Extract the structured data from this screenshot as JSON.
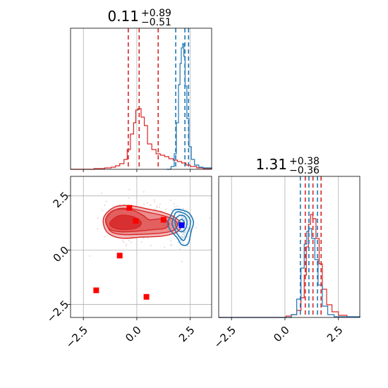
{
  "chart_data": {
    "type": "corner",
    "parameters": 2,
    "grid": true,
    "colors": {
      "red": "#d62728",
      "blue": "#1f77b4",
      "marker_red": "#ff0000",
      "marker_blue": "#0000ff"
    },
    "titles": [
      {
        "median": "0.11",
        "plus": "+0.89",
        "minus": "−0.51"
      },
      {
        "median": "1.31",
        "plus": "+0.38",
        "minus": "−0.36"
      }
    ],
    "x_ticks": [
      {
        "value": -2.5,
        "label": "−2.5"
      },
      {
        "value": 0.0,
        "label": "0.0"
      },
      {
        "value": 2.5,
        "label": "2.5"
      }
    ],
    "y_ticks": [
      {
        "value": 2.5,
        "label": "2.5"
      },
      {
        "value": 0.0,
        "label": "0.0"
      },
      {
        "value": -2.5,
        "label": "−2.5"
      }
    ],
    "xlim": [
      -3.1,
      3.5
    ],
    "ylim": [
      -3.1,
      3.4
    ],
    "hist_param1": {
      "red_quantile_lines": [
        -0.4,
        0.11,
        1.0
      ],
      "blue_quantile_lines": [
        1.82,
        2.25,
        2.42
      ],
      "red_counts": [
        {
          "x": -3.1,
          "y": 0
        },
        {
          "x": -2.5,
          "y": 0
        },
        {
          "x": -2.0,
          "y": 1
        },
        {
          "x": -1.5,
          "y": 2
        },
        {
          "x": -1.2,
          "y": 3
        },
        {
          "x": -1.0,
          "y": 5
        },
        {
          "x": -0.8,
          "y": 8
        },
        {
          "x": -0.6,
          "y": 14
        },
        {
          "x": -0.45,
          "y": 28
        },
        {
          "x": -0.3,
          "y": 50
        },
        {
          "x": -0.15,
          "y": 66
        },
        {
          "x": -0.05,
          "y": 84
        },
        {
          "x": 0.05,
          "y": 86
        },
        {
          "x": 0.2,
          "y": 74
        },
        {
          "x": 0.35,
          "y": 62
        },
        {
          "x": 0.5,
          "y": 36
        },
        {
          "x": 0.7,
          "y": 28
        },
        {
          "x": 0.9,
          "y": 22
        },
        {
          "x": 1.1,
          "y": 20
        },
        {
          "x": 1.3,
          "y": 18
        },
        {
          "x": 1.5,
          "y": 15
        },
        {
          "x": 1.7,
          "y": 13
        },
        {
          "x": 1.9,
          "y": 11
        },
        {
          "x": 2.1,
          "y": 9
        },
        {
          "x": 2.3,
          "y": 6
        },
        {
          "x": 2.5,
          "y": 4
        },
        {
          "x": 2.8,
          "y": 2
        },
        {
          "x": 3.1,
          "y": 1
        },
        {
          "x": 3.5,
          "y": 0
        }
      ],
      "blue_counts": [
        {
          "x": 1.4,
          "y": 0
        },
        {
          "x": 1.6,
          "y": 4
        },
        {
          "x": 1.75,
          "y": 22
        },
        {
          "x": 1.85,
          "y": 66
        },
        {
          "x": 1.95,
          "y": 120
        },
        {
          "x": 2.02,
          "y": 150
        },
        {
          "x": 2.08,
          "y": 172
        },
        {
          "x": 2.14,
          "y": 178
        },
        {
          "x": 2.2,
          "y": 160
        },
        {
          "x": 2.26,
          "y": 118
        },
        {
          "x": 2.34,
          "y": 72
        },
        {
          "x": 2.44,
          "y": 32
        },
        {
          "x": 2.55,
          "y": 14
        },
        {
          "x": 2.7,
          "y": 6
        },
        {
          "x": 2.9,
          "y": 3
        },
        {
          "x": 3.1,
          "y": 2
        },
        {
          "x": 3.5,
          "y": 0
        }
      ],
      "ymax": 200
    },
    "hist_param2": {
      "red_quantile_lines": [
        0.95,
        1.31,
        1.69
      ],
      "blue_quantile_lines": [
        0.72,
        1.12,
        1.52
      ],
      "red_counts": [
        {
          "x": -3.1,
          "y": 0
        },
        {
          "x": -0.2,
          "y": 0
        },
        {
          "x": 0.05,
          "y": 2
        },
        {
          "x": 0.3,
          "y": 4
        },
        {
          "x": 0.55,
          "y": 10
        },
        {
          "x": 0.75,
          "y": 28
        },
        {
          "x": 0.9,
          "y": 60
        },
        {
          "x": 1.0,
          "y": 100
        },
        {
          "x": 1.1,
          "y": 132
        },
        {
          "x": 1.2,
          "y": 146
        },
        {
          "x": 1.3,
          "y": 140
        },
        {
          "x": 1.45,
          "y": 112
        },
        {
          "x": 1.6,
          "y": 76
        },
        {
          "x": 1.75,
          "y": 40
        },
        {
          "x": 1.95,
          "y": 18
        },
        {
          "x": 2.2,
          "y": 8
        },
        {
          "x": 2.5,
          "y": 3
        },
        {
          "x": 2.9,
          "y": 1
        },
        {
          "x": 3.5,
          "y": 0
        }
      ],
      "blue_counts": [
        {
          "x": -3.1,
          "y": 0
        },
        {
          "x": 0.0,
          "y": 0
        },
        {
          "x": 0.3,
          "y": 4
        },
        {
          "x": 0.55,
          "y": 26
        },
        {
          "x": 0.75,
          "y": 70
        },
        {
          "x": 0.9,
          "y": 104
        },
        {
          "x": 1.02,
          "y": 122
        },
        {
          "x": 1.12,
          "y": 126
        },
        {
          "x": 1.25,
          "y": 112
        },
        {
          "x": 1.4,
          "y": 82
        },
        {
          "x": 1.55,
          "y": 46
        },
        {
          "x": 1.75,
          "y": 16
        },
        {
          "x": 2.0,
          "y": 4
        },
        {
          "x": 2.3,
          "y": 1
        },
        {
          "x": 3.5,
          "y": 0
        }
      ],
      "ymax": 200
    },
    "scatter_2d": {
      "red_contours": [
        {
          "level": 1,
          "points": [
            [
              -1.5,
              1.6
            ],
            [
              -1.0,
              2.0
            ],
            [
              -0.3,
              2.05
            ],
            [
              0.5,
              1.9
            ],
            [
              1.2,
              1.75
            ],
            [
              1.8,
              1.5
            ],
            [
              2.05,
              1.2
            ],
            [
              1.9,
              0.85
            ],
            [
              1.2,
              0.65
            ],
            [
              0.2,
              0.6
            ],
            [
              -0.7,
              0.55
            ],
            [
              -1.3,
              0.75
            ],
            [
              -1.55,
              1.15
            ]
          ]
        },
        {
          "level": 2,
          "points": [
            [
              -1.35,
              1.55
            ],
            [
              -0.9,
              1.9
            ],
            [
              -0.2,
              1.9
            ],
            [
              0.5,
              1.75
            ],
            [
              1.2,
              1.6
            ],
            [
              1.75,
              1.4
            ],
            [
              1.9,
              1.15
            ],
            [
              1.7,
              0.9
            ],
            [
              1.1,
              0.78
            ],
            [
              0.2,
              0.73
            ],
            [
              -0.7,
              0.72
            ],
            [
              -1.2,
              0.85
            ],
            [
              -1.4,
              1.2
            ]
          ]
        },
        {
          "level": 3,
          "points": [
            [
              -1.45,
              1.45
            ],
            [
              -1.05,
              1.85
            ],
            [
              -0.25,
              1.85
            ],
            [
              0.3,
              1.6
            ],
            [
              0.6,
              1.4
            ],
            [
              1.25,
              1.45
            ],
            [
              1.5,
              1.2
            ],
            [
              1.3,
              1.0
            ],
            [
              0.8,
              0.95
            ],
            [
              0.1,
              0.88
            ],
            [
              -0.8,
              0.85
            ],
            [
              -1.3,
              1.0
            ]
          ]
        },
        {
          "level": 4,
          "points": [
            [
              -1.2,
              1.35
            ],
            [
              -0.8,
              1.6
            ],
            [
              -0.2,
              1.55
            ],
            [
              0.2,
              1.3
            ],
            [
              0.05,
              1.05
            ],
            [
              -0.5,
              0.95
            ],
            [
              -1.0,
              1.0
            ],
            [
              -1.25,
              1.15
            ]
          ]
        }
      ],
      "blue_contours": [
        {
          "level": 1,
          "points": [
            [
              1.55,
              1.5
            ],
            [
              1.75,
              1.85
            ],
            [
              2.1,
              1.85
            ],
            [
              2.45,
              1.7
            ],
            [
              2.65,
              1.3
            ],
            [
              2.55,
              0.9
            ],
            [
              2.4,
              0.3
            ],
            [
              2.1,
              0.25
            ],
            [
              1.9,
              0.55
            ],
            [
              1.55,
              0.95
            ],
            [
              1.45,
              1.25
            ]
          ]
        },
        {
          "level": 2,
          "points": [
            [
              1.7,
              1.45
            ],
            [
              1.85,
              1.75
            ],
            [
              2.15,
              1.72
            ],
            [
              2.45,
              1.5
            ],
            [
              2.5,
              1.15
            ],
            [
              2.35,
              0.75
            ],
            [
              2.2,
              0.45
            ],
            [
              2.0,
              0.6
            ],
            [
              1.8,
              0.9
            ],
            [
              1.65,
              1.2
            ]
          ]
        },
        {
          "level": 3,
          "points": [
            [
              1.8,
              1.4
            ],
            [
              2.0,
              1.6
            ],
            [
              2.25,
              1.55
            ],
            [
              2.35,
              1.25
            ],
            [
              2.25,
              0.95
            ],
            [
              2.05,
              0.85
            ],
            [
              1.85,
              1.05
            ]
          ]
        },
        {
          "level": 4,
          "points": [
            [
              1.95,
              1.3
            ],
            [
              2.1,
              1.42
            ],
            [
              2.22,
              1.28
            ],
            [
              2.15,
              1.08
            ],
            [
              1.98,
              1.12
            ]
          ]
        }
      ],
      "red_markers": [
        {
          "x": -0.35,
          "y": 1.95
        },
        {
          "x": -0.05,
          "y": 1.35
        },
        {
          "x": 1.25,
          "y": 1.4
        },
        {
          "x": -0.8,
          "y": -0.25
        },
        {
          "x": -1.9,
          "y": -1.85
        },
        {
          "x": 0.45,
          "y": -2.15
        }
      ],
      "blue_marker": {
        "x": 2.1,
        "y": 1.15
      }
    }
  }
}
